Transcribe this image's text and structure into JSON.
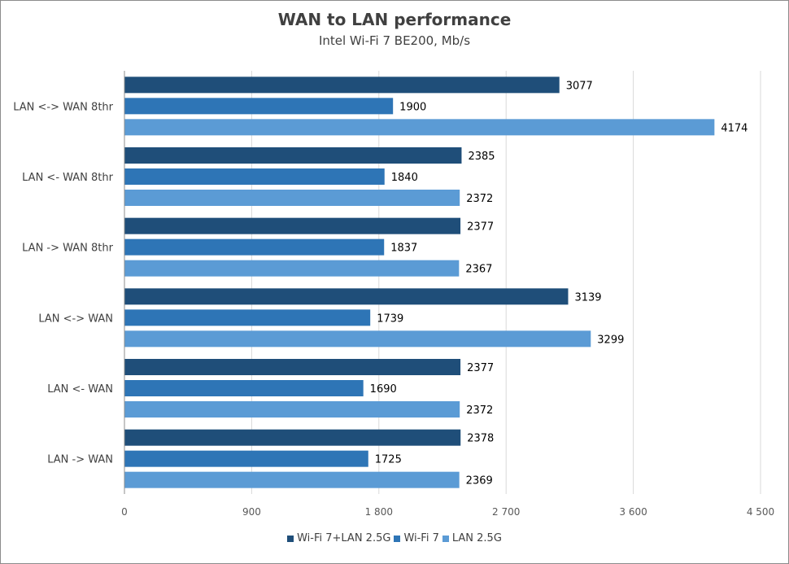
{
  "chart_data": {
    "type": "bar",
    "orientation": "horizontal",
    "title": "WAN to LAN performance",
    "subtitle": "Intel Wi-Fi 7 BE200, Mb/s",
    "xlabel": "",
    "ylabel": "",
    "xlim": [
      0,
      4500
    ],
    "x_ticks": [
      0,
      900,
      1800,
      2700,
      3600,
      4500
    ],
    "x_tick_labels": [
      "0",
      "900",
      "1 800",
      "2 700",
      "3 600",
      "4 500"
    ],
    "grid": true,
    "legend_position": "bottom",
    "categories": [
      "LAN <-> WAN 8thr",
      "LAN <- WAN 8thr",
      "LAN -> WAN 8thr",
      "LAN <-> WAN",
      "LAN <- WAN",
      "LAN -> WAN"
    ],
    "series": [
      {
        "name": "Wi-Fi 7+LAN 2.5G",
        "color": "#1f4e79",
        "values": [
          3077,
          2385,
          2377,
          3139,
          2377,
          2378
        ]
      },
      {
        "name": "Wi-Fi 7",
        "color": "#2e75b6",
        "values": [
          1900,
          1840,
          1837,
          1739,
          1690,
          1725
        ]
      },
      {
        "name": "LAN 2.5G",
        "color": "#5b9bd5",
        "values": [
          4174,
          2372,
          2367,
          3299,
          2372,
          2369
        ]
      }
    ]
  }
}
